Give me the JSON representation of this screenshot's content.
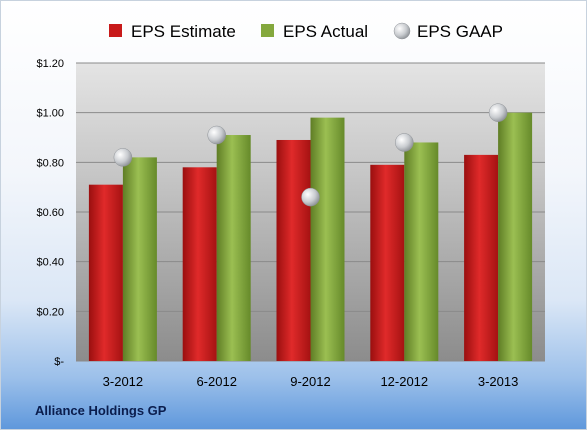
{
  "chart_data": {
    "type": "bar",
    "categories": [
      "3-2012",
      "6-2012",
      "9-2012",
      "12-2012",
      "3-2013"
    ],
    "series": [
      {
        "name": "EPS Estimate",
        "kind": "bar",
        "color": "#c81a1a",
        "values": [
          0.71,
          0.78,
          0.89,
          0.79,
          0.83
        ]
      },
      {
        "name": "EPS Actual",
        "kind": "bar",
        "color": "#84a83d",
        "values": [
          0.82,
          0.91,
          0.98,
          0.88,
          1.0
        ]
      },
      {
        "name": "EPS GAAP",
        "kind": "marker",
        "color": "#bfc3c8",
        "values": [
          0.82,
          0.91,
          0.66,
          0.88,
          1.0
        ]
      }
    ],
    "yticks": [
      "$-",
      "$0.20",
      "$0.40",
      "$0.60",
      "$0.80",
      "$1.00",
      "$1.20"
    ],
    "ylim": [
      0,
      1.2
    ],
    "grid": true,
    "legend_position": "top"
  },
  "footer": {
    "company": "Alliance Holdings GP"
  }
}
